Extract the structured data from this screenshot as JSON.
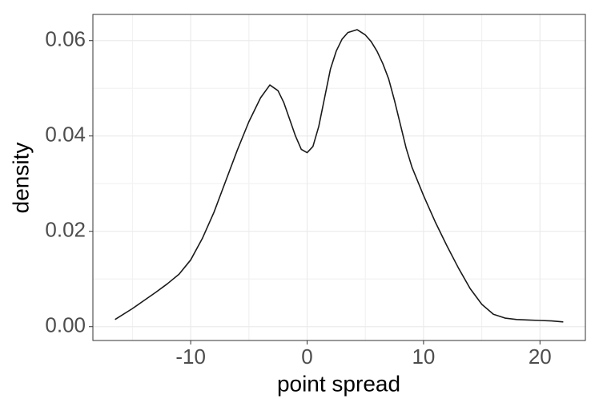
{
  "chart_data": {
    "type": "line",
    "x_label": "point spread",
    "y_label": "density",
    "x": [
      -16.5,
      -15,
      -14,
      -13,
      -12,
      -11,
      -10,
      -9,
      -8,
      -7,
      -6,
      -5,
      -4,
      -3.2,
      -2.5,
      -2,
      -1.5,
      -1,
      -0.5,
      0,
      0.5,
      1,
      1.5,
      2,
      2.5,
      3,
      3.5,
      4.3,
      5,
      5.5,
      6,
      6.5,
      7,
      7.5,
      8,
      8.5,
      9,
      10,
      11,
      12,
      13,
      14,
      15,
      16,
      17,
      18,
      19,
      20,
      21,
      22
    ],
    "series": [
      {
        "color": "#1a1a1a",
        "values": [
          0.0015,
          0.0038,
          0.0055,
          0.0072,
          0.009,
          0.011,
          0.014,
          0.0185,
          0.024,
          0.0305,
          0.037,
          0.043,
          0.048,
          0.0507,
          0.0495,
          0.047,
          0.0435,
          0.04,
          0.0372,
          0.0365,
          0.0378,
          0.042,
          0.048,
          0.054,
          0.0578,
          0.0603,
          0.0617,
          0.0623,
          0.0612,
          0.0598,
          0.0578,
          0.0552,
          0.052,
          0.0475,
          0.0425,
          0.0375,
          0.0335,
          0.0275,
          0.022,
          0.017,
          0.0123,
          0.008,
          0.0047,
          0.0026,
          0.0018,
          0.0015,
          0.0014,
          0.0013,
          0.0012,
          0.001
        ]
      }
    ],
    "xlim": [
      -18.4,
      23.9
    ],
    "xticks": [
      -10,
      0,
      10,
      20
    ],
    "ylim": [
      -0.0029,
      0.0655
    ],
    "yticks": [
      {
        "value": 0,
        "label": "0.00"
      },
      0.02,
      0.04,
      0.06
    ],
    "grid": true
  }
}
